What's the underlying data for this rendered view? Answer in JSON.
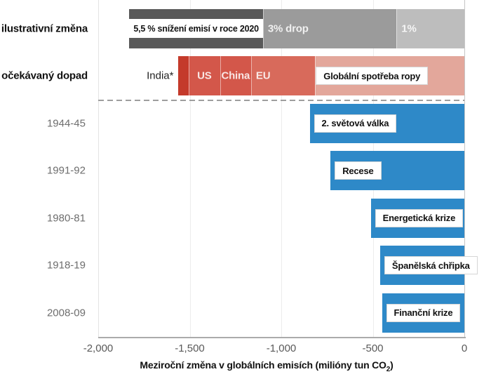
{
  "chart_data": {
    "type": "bar",
    "orientation": "horizontal",
    "xlabel": "Meziroční změna v globálních emisích (milióny tun CO2)",
    "xlabel_parts": [
      "Meziroční změna v globálních emisích (milióny tun CO",
      "2",
      ")"
    ],
    "xlim": [
      -2000,
      0
    ],
    "xticks": [
      {
        "value": -2000,
        "label": "-2,000"
      },
      {
        "value": -1500,
        "label": "-1,500"
      },
      {
        "value": -1000,
        "label": "-1,000"
      },
      {
        "value": -500,
        "label": "-500"
      },
      {
        "value": 0,
        "label": "0"
      }
    ],
    "grid": true,
    "legend": "none",
    "divider_between": [
      "očekávaný dopad",
      "1944-45"
    ],
    "colors": {
      "blue_bar": "#2e89c8",
      "gray_dark": "#595959",
      "gray_mid": "#9b9b9b",
      "gray_light": "#bdbdbd",
      "red_dark": "#c43a2b",
      "red_mid": "#d3574a",
      "red_eu": "#d86a5b",
      "red_pale": "#e3a79b"
    },
    "rows": [
      {
        "id": "ilustrativni-zmena",
        "category": "ilustrativní změna",
        "kind": "stacked",
        "segments": [
          {
            "label": "5,5 % snížení emisí v roce 2020",
            "from": -1830,
            "to": -1100,
            "color": "#595959",
            "label_mode": "box-fill"
          },
          {
            "label": "3% drop",
            "from": -1100,
            "to": -370,
            "color": "#9b9b9b",
            "label_mode": "inline-start"
          },
          {
            "label": "1%",
            "from": -370,
            "to": 0,
            "color": "#bdbdbd",
            "label_mode": "inline-start"
          }
        ]
      },
      {
        "id": "ocekavany-dopad",
        "category": "očekávaný dopad",
        "kind": "stacked",
        "segments": [
          {
            "label": "India*",
            "from": -1565,
            "to": -1505,
            "color": "#c43a2b",
            "label_mode": "outside-left"
          },
          {
            "label": "US",
            "from": -1505,
            "to": -1335,
            "color": "#d3574a",
            "label_mode": "inline-center"
          },
          {
            "label": "China",
            "from": -1335,
            "to": -1165,
            "color": "#d3574a",
            "label_mode": "inline-center"
          },
          {
            "label": "EU",
            "from": -1165,
            "to": -815,
            "color": "#d86a5b",
            "label_mode": "inline-start"
          },
          {
            "label": "Globální spotřeba ropy",
            "from": -815,
            "to": 0,
            "color": "#e3a79b",
            "label_mode": "box-start"
          }
        ]
      },
      {
        "id": "1944-45",
        "category": "1944-45",
        "kind": "single",
        "value": -845,
        "color": "#2e89c8",
        "annotation": "2. světová válka"
      },
      {
        "id": "1991-92",
        "category": "1991-92",
        "kind": "single",
        "value": -731,
        "color": "#2e89c8",
        "annotation": "Recese"
      },
      {
        "id": "1980-81",
        "category": "1980-81",
        "kind": "single",
        "value": -511,
        "color": "#2e89c8",
        "annotation": "Energetická krize"
      },
      {
        "id": "1918-19",
        "category": "1918-19",
        "kind": "single",
        "value": -460,
        "color": "#2e89c8",
        "annotation": "Španělská chřipka"
      },
      {
        "id": "2008-09",
        "category": "2008-09",
        "kind": "single",
        "value": -450,
        "color": "#2e89c8",
        "annotation": "Finanční krize"
      }
    ]
  }
}
